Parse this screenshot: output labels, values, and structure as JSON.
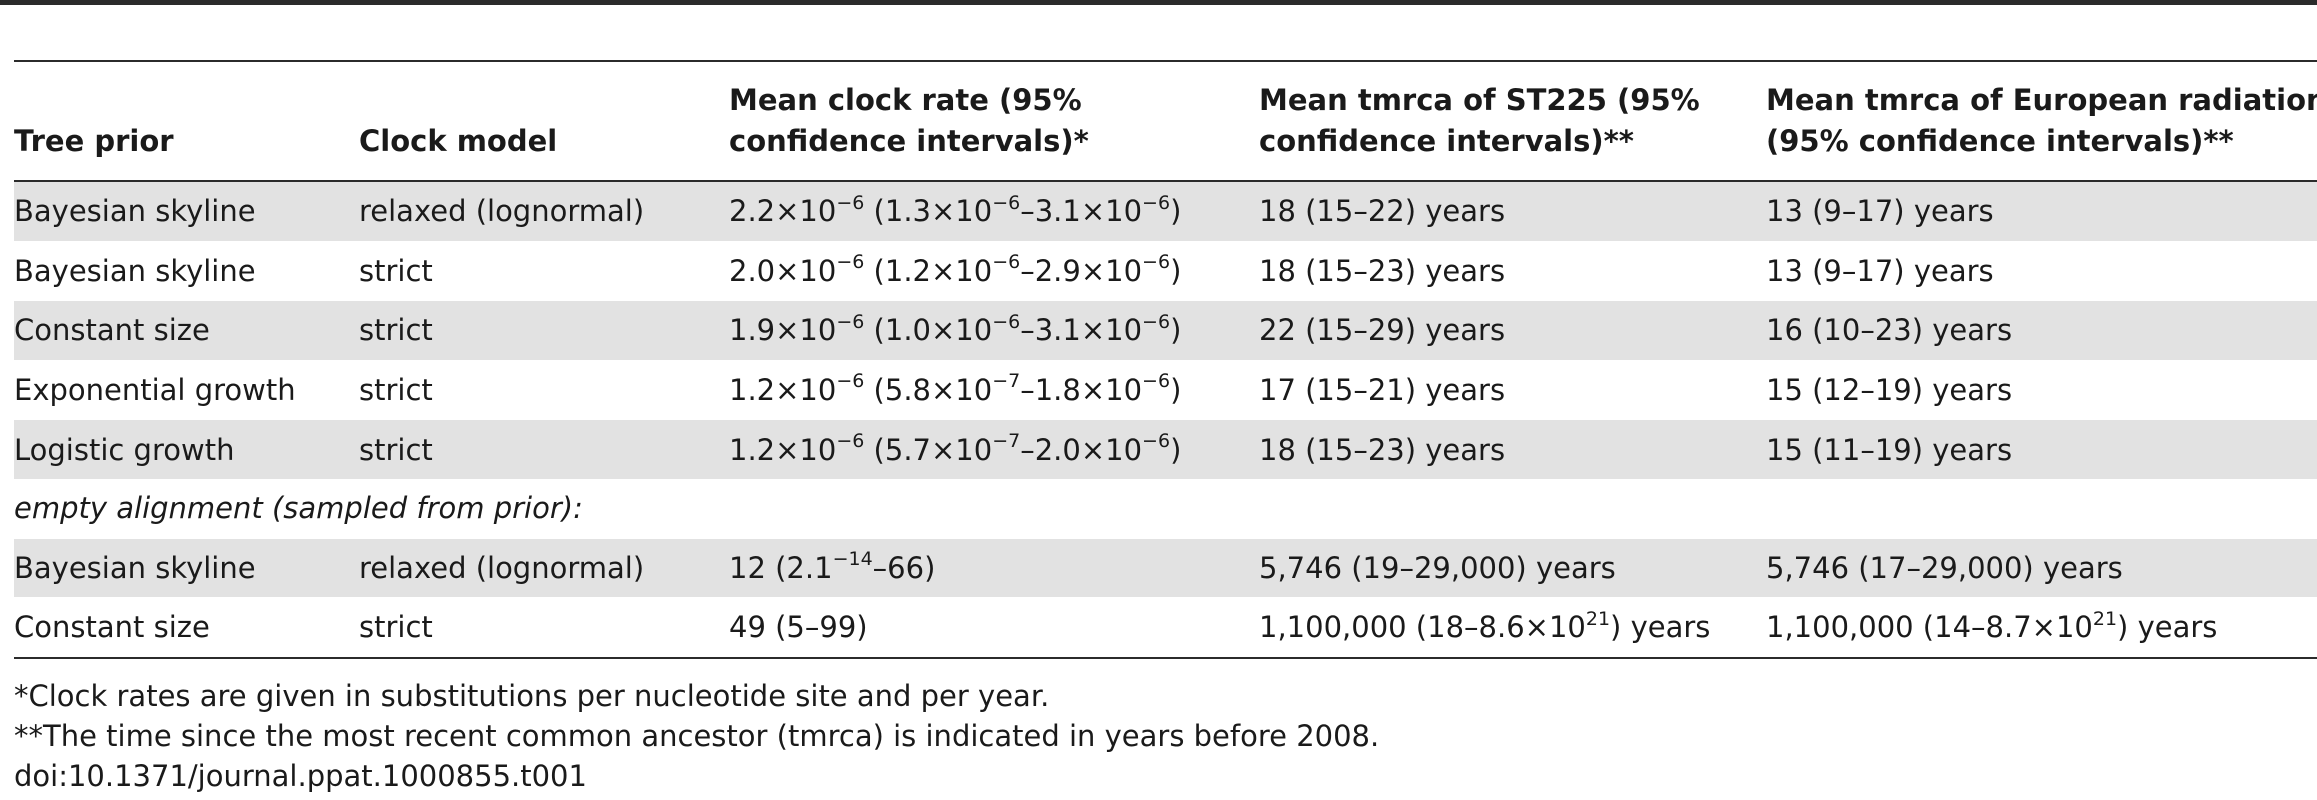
{
  "columns": [
    "Tree prior",
    "Clock model",
    [
      "Mean clock rate (95%",
      "confidence intervals)*"
    ],
    [
      "Mean tmrca of ST225 (95%",
      "confidence intervals)**"
    ],
    [
      "Mean tmrca of European radiation",
      "(95% confidence intervals)**"
    ]
  ],
  "rows": [
    {
      "shaded": true,
      "tree_prior": "Bayesian skyline",
      "clock_model": "relaxed (lognormal)",
      "rate": [
        [
          "t",
          "2.2×10"
        ],
        [
          "s",
          "−6"
        ],
        [
          "t",
          " (1.3×10"
        ],
        [
          "s",
          "−6"
        ],
        [
          "t",
          "–3.1×10"
        ],
        [
          "s",
          "−6"
        ],
        [
          "t",
          ")"
        ]
      ],
      "tmrca_st225": [
        [
          "t",
          "18 (15–22) years"
        ]
      ],
      "tmrca_europe": [
        [
          "t",
          "13 (9–17) years"
        ]
      ]
    },
    {
      "shaded": false,
      "tree_prior": "Bayesian skyline",
      "clock_model": "strict",
      "rate": [
        [
          "t",
          "2.0×10"
        ],
        [
          "s",
          "−6"
        ],
        [
          "t",
          " (1.2×10"
        ],
        [
          "s",
          "−6"
        ],
        [
          "t",
          "–2.9×10"
        ],
        [
          "s",
          "−6"
        ],
        [
          "t",
          ")"
        ]
      ],
      "tmrca_st225": [
        [
          "t",
          "18 (15–23) years"
        ]
      ],
      "tmrca_europe": [
        [
          "t",
          "13 (9–17) years"
        ]
      ]
    },
    {
      "shaded": true,
      "tree_prior": "Constant size",
      "clock_model": "strict",
      "rate": [
        [
          "t",
          "1.9×10"
        ],
        [
          "s",
          "−6"
        ],
        [
          "t",
          " (1.0×10"
        ],
        [
          "s",
          "−6"
        ],
        [
          "t",
          "–3.1×10"
        ],
        [
          "s",
          "−6"
        ],
        [
          "t",
          ")"
        ]
      ],
      "tmrca_st225": [
        [
          "t",
          "22 (15–29) years"
        ]
      ],
      "tmrca_europe": [
        [
          "t",
          "16 (10–23) years"
        ]
      ]
    },
    {
      "shaded": false,
      "tree_prior": "Exponential growth",
      "clock_model": "strict",
      "rate": [
        [
          "t",
          "1.2×10"
        ],
        [
          "s",
          "−6"
        ],
        [
          "t",
          " (5.8×10"
        ],
        [
          "s",
          "−7"
        ],
        [
          "t",
          "–1.8×10"
        ],
        [
          "s",
          "−6"
        ],
        [
          "t",
          ")"
        ]
      ],
      "tmrca_st225": [
        [
          "t",
          "17 (15–21) years"
        ]
      ],
      "tmrca_europe": [
        [
          "t",
          "15 (12–19) years"
        ]
      ]
    },
    {
      "shaded": true,
      "tree_prior": "Logistic growth",
      "clock_model": "strict",
      "rate": [
        [
          "t",
          "1.2×10"
        ],
        [
          "s",
          "−6"
        ],
        [
          "t",
          " (5.7×10"
        ],
        [
          "s",
          "−7"
        ],
        [
          "t",
          "–2.0×10"
        ],
        [
          "s",
          "−6"
        ],
        [
          "t",
          ")"
        ]
      ],
      "tmrca_st225": [
        [
          "t",
          "18 (15–23) years"
        ]
      ],
      "tmrca_europe": [
        [
          "t",
          "15 (11–19) years"
        ]
      ]
    },
    {
      "section": "empty alignment (sampled from prior):"
    },
    {
      "shaded": true,
      "tree_prior": "Bayesian skyline",
      "clock_model": "relaxed (lognormal)",
      "rate": [
        [
          "t",
          "12 (2.1"
        ],
        [
          "s",
          "−14"
        ],
        [
          "t",
          "–66)"
        ]
      ],
      "tmrca_st225": [
        [
          "t",
          "5,746 (19–29,000) years"
        ]
      ],
      "tmrca_europe": [
        [
          "t",
          "5,746 (17–29,000) years"
        ]
      ]
    },
    {
      "shaded": false,
      "tree_prior": "Constant size",
      "clock_model": "strict",
      "rate": [
        [
          "t",
          "49 (5–99)"
        ]
      ],
      "tmrca_st225": [
        [
          "t",
          "1,100,000 (18–8.6×10"
        ],
        [
          "s",
          "21"
        ],
        [
          "t",
          ") years"
        ]
      ],
      "tmrca_europe": [
        [
          "t",
          "1,100,000 (14–8.7×10"
        ],
        [
          "s",
          "21"
        ],
        [
          "t",
          ") years"
        ]
      ]
    }
  ],
  "footnotes": [
    "*Clock rates are given in substitutions per nucleotide site and per year.",
    "**The time since the most recent common ancestor (tmrca) is indicated in years before 2008.",
    "doi:10.1371/journal.ppat.1000855.t001"
  ]
}
